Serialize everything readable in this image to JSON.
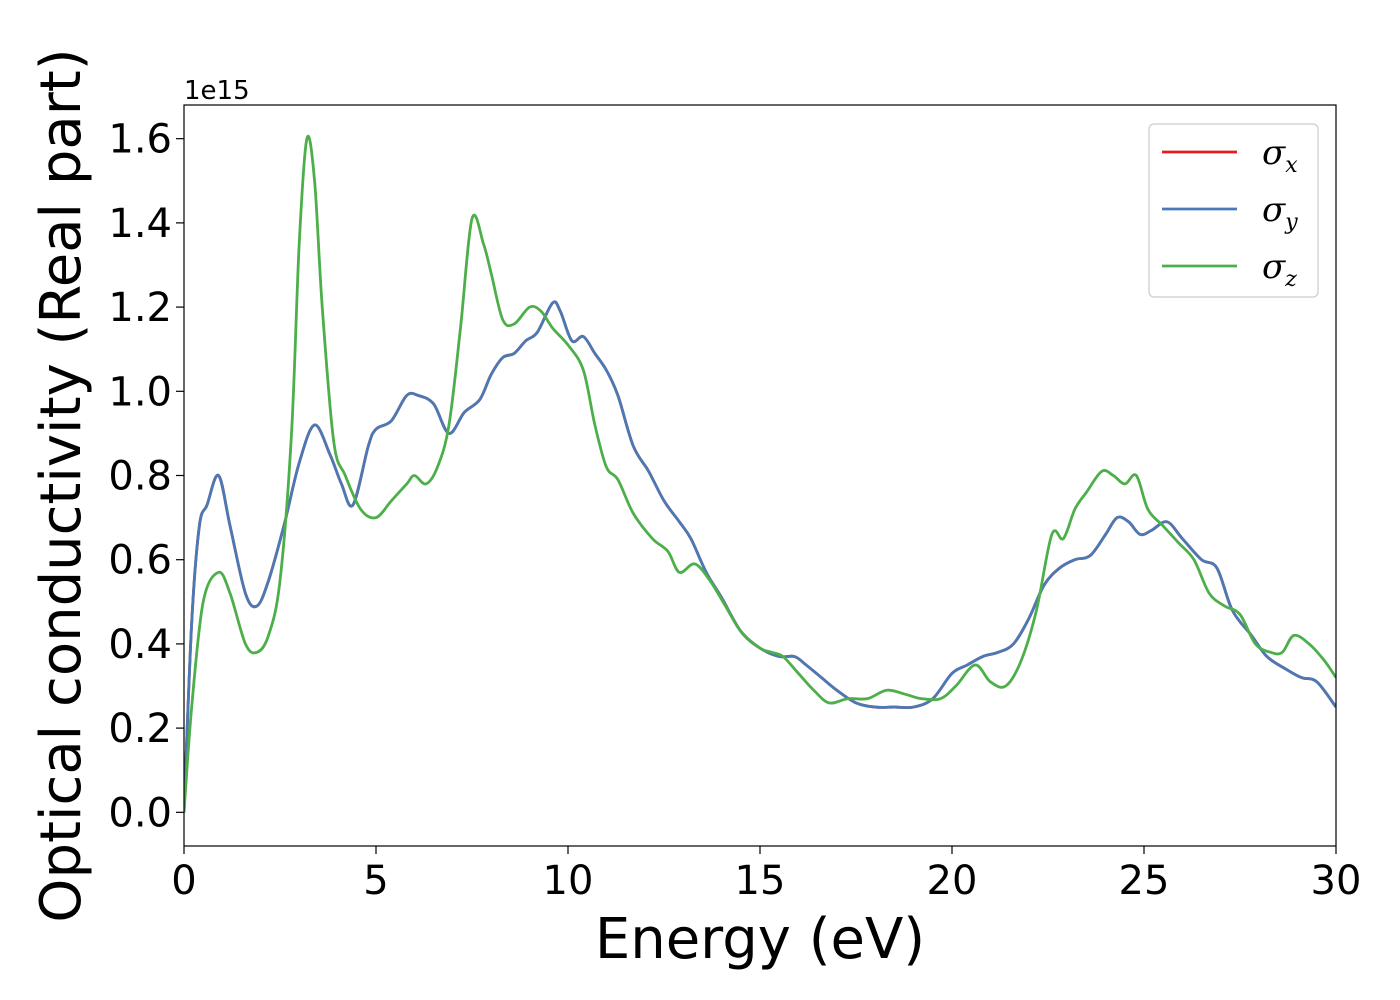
{
  "chart_data": {
    "type": "line",
    "title": "",
    "xlabel": "Energy (eV)",
    "ylabel": "Optical conductivity (Real part)",
    "y_offset_text": "1e15",
    "y_multiplier": 1000000000000000.0,
    "xlim": [
      0,
      30
    ],
    "ylim": [
      -0.08,
      1.68
    ],
    "xticks": [
      0,
      5,
      10,
      15,
      20,
      25,
      30
    ],
    "xtick_labels": [
      "0",
      "5",
      "10",
      "15",
      "20",
      "25",
      "30"
    ],
    "yticks": [
      0.0,
      0.2,
      0.4,
      0.6,
      0.8,
      1.0,
      1.2,
      1.4,
      1.6
    ],
    "ytick_labels": [
      "0.0",
      "0.2",
      "0.4",
      "0.6",
      "0.8",
      "1.0",
      "1.2",
      "1.4",
      "1.6"
    ],
    "grid": false,
    "legend_position": "top-right",
    "series": [
      {
        "name": "σx",
        "legend_symbol": "σ",
        "legend_sub": "x",
        "color": "#e41a1c",
        "x": [
          0,
          0.2,
          0.4,
          0.6,
          0.9,
          1.2,
          1.6,
          1.9,
          2.2,
          2.6,
          3.0,
          3.4,
          3.8,
          4.1,
          4.4,
          4.8,
          5.0,
          5.4,
          5.8,
          6.1,
          6.5,
          6.9,
          7.3,
          7.7,
          8.0,
          8.3,
          8.6,
          8.9,
          9.2,
          9.6,
          9.8,
          10.1,
          10.4,
          10.7,
          11.0,
          11.3,
          11.7,
          12.1,
          12.5,
          12.9,
          13.2,
          13.6,
          14.0,
          14.5,
          15.0,
          15.5,
          15.9,
          16.2,
          16.6,
          17.0,
          17.5,
          18.0,
          18.5,
          19.0,
          19.5,
          20.0,
          20.4,
          20.8,
          21.2,
          21.6,
          22.0,
          22.4,
          22.8,
          23.2,
          23.6,
          24.0,
          24.3,
          24.6,
          24.9,
          25.2,
          25.6,
          26.0,
          26.5,
          26.9,
          27.3,
          27.8,
          28.2,
          28.7,
          29.1,
          29.5,
          30.0
        ],
        "y": [
          0.0,
          0.45,
          0.68,
          0.73,
          0.8,
          0.68,
          0.52,
          0.49,
          0.55,
          0.68,
          0.83,
          0.92,
          0.85,
          0.78,
          0.73,
          0.87,
          0.91,
          0.93,
          0.99,
          0.99,
          0.97,
          0.9,
          0.95,
          0.98,
          1.04,
          1.08,
          1.09,
          1.12,
          1.14,
          1.21,
          1.19,
          1.12,
          1.13,
          1.09,
          1.05,
          0.99,
          0.87,
          0.81,
          0.74,
          0.69,
          0.65,
          0.57,
          0.51,
          0.43,
          0.39,
          0.37,
          0.37,
          0.35,
          0.32,
          0.29,
          0.26,
          0.25,
          0.25,
          0.25,
          0.27,
          0.33,
          0.35,
          0.37,
          0.38,
          0.4,
          0.46,
          0.54,
          0.58,
          0.6,
          0.61,
          0.66,
          0.7,
          0.69,
          0.66,
          0.67,
          0.69,
          0.65,
          0.6,
          0.58,
          0.48,
          0.42,
          0.37,
          0.34,
          0.32,
          0.31,
          0.25
        ]
      },
      {
        "name": "σy",
        "legend_symbol": "σ",
        "legend_sub": "y",
        "color": "#4a7ab5",
        "x": [
          0,
          0.2,
          0.4,
          0.6,
          0.9,
          1.2,
          1.6,
          1.9,
          2.2,
          2.6,
          3.0,
          3.4,
          3.8,
          4.1,
          4.4,
          4.8,
          5.0,
          5.4,
          5.8,
          6.1,
          6.5,
          6.9,
          7.3,
          7.7,
          8.0,
          8.3,
          8.6,
          8.9,
          9.2,
          9.6,
          9.8,
          10.1,
          10.4,
          10.7,
          11.0,
          11.3,
          11.7,
          12.1,
          12.5,
          12.9,
          13.2,
          13.6,
          14.0,
          14.5,
          15.0,
          15.5,
          15.9,
          16.2,
          16.6,
          17.0,
          17.5,
          18.0,
          18.5,
          19.0,
          19.5,
          20.0,
          20.4,
          20.8,
          21.2,
          21.6,
          22.0,
          22.4,
          22.8,
          23.2,
          23.6,
          24.0,
          24.3,
          24.6,
          24.9,
          25.2,
          25.6,
          26.0,
          26.5,
          26.9,
          27.3,
          27.8,
          28.2,
          28.7,
          29.1,
          29.5,
          30.0
        ],
        "y": [
          0.0,
          0.45,
          0.68,
          0.73,
          0.8,
          0.68,
          0.52,
          0.49,
          0.55,
          0.68,
          0.83,
          0.92,
          0.85,
          0.78,
          0.73,
          0.87,
          0.91,
          0.93,
          0.99,
          0.99,
          0.97,
          0.9,
          0.95,
          0.98,
          1.04,
          1.08,
          1.09,
          1.12,
          1.14,
          1.21,
          1.19,
          1.12,
          1.13,
          1.09,
          1.05,
          0.99,
          0.87,
          0.81,
          0.74,
          0.69,
          0.65,
          0.57,
          0.51,
          0.43,
          0.39,
          0.37,
          0.37,
          0.35,
          0.32,
          0.29,
          0.26,
          0.25,
          0.25,
          0.25,
          0.27,
          0.33,
          0.35,
          0.37,
          0.38,
          0.4,
          0.46,
          0.54,
          0.58,
          0.6,
          0.61,
          0.66,
          0.7,
          0.69,
          0.66,
          0.67,
          0.69,
          0.65,
          0.6,
          0.58,
          0.48,
          0.42,
          0.37,
          0.34,
          0.32,
          0.31,
          0.25
        ]
      },
      {
        "name": "σz",
        "legend_symbol": "σ",
        "legend_sub": "z",
        "color": "#4daf4a",
        "x": [
          0,
          0.2,
          0.5,
          0.9,
          1.2,
          1.6,
          1.9,
          2.2,
          2.5,
          2.8,
          3.0,
          3.2,
          3.4,
          3.6,
          3.9,
          4.2,
          4.6,
          5.0,
          5.4,
          5.8,
          6.0,
          6.3,
          6.6,
          6.9,
          7.2,
          7.5,
          7.8,
          8.0,
          8.3,
          8.6,
          9.0,
          9.3,
          9.6,
          10.0,
          10.4,
          10.7,
          11.0,
          11.3,
          11.7,
          12.2,
          12.6,
          12.9,
          13.3,
          13.7,
          14.1,
          14.5,
          15.0,
          15.3,
          15.6,
          16.0,
          16.4,
          16.8,
          17.3,
          17.8,
          18.3,
          18.8,
          19.2,
          19.7,
          20.1,
          20.6,
          21.0,
          21.4,
          21.8,
          22.2,
          22.6,
          22.9,
          23.2,
          23.5,
          23.9,
          24.2,
          24.5,
          24.8,
          25.1,
          25.5,
          25.9,
          26.3,
          26.7,
          27.1,
          27.5,
          27.9,
          28.3,
          28.6,
          28.9,
          29.3,
          29.7,
          30.0
        ],
        "y": [
          0.0,
          0.25,
          0.5,
          0.57,
          0.52,
          0.4,
          0.38,
          0.42,
          0.55,
          0.9,
          1.35,
          1.6,
          1.5,
          1.2,
          0.88,
          0.8,
          0.72,
          0.7,
          0.74,
          0.78,
          0.8,
          0.78,
          0.82,
          0.92,
          1.15,
          1.41,
          1.35,
          1.28,
          1.17,
          1.16,
          1.2,
          1.19,
          1.15,
          1.11,
          1.05,
          0.92,
          0.82,
          0.79,
          0.71,
          0.65,
          0.62,
          0.57,
          0.59,
          0.55,
          0.49,
          0.43,
          0.39,
          0.38,
          0.37,
          0.33,
          0.29,
          0.26,
          0.27,
          0.27,
          0.29,
          0.28,
          0.27,
          0.27,
          0.3,
          0.35,
          0.31,
          0.3,
          0.36,
          0.48,
          0.66,
          0.65,
          0.72,
          0.76,
          0.81,
          0.8,
          0.78,
          0.8,
          0.72,
          0.68,
          0.64,
          0.6,
          0.52,
          0.49,
          0.47,
          0.4,
          0.38,
          0.38,
          0.42,
          0.4,
          0.36,
          0.32
        ]
      }
    ]
  }
}
